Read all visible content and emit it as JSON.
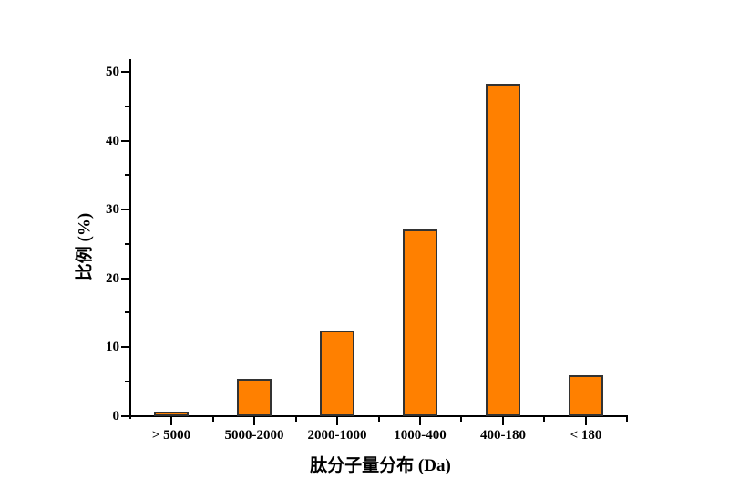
{
  "chart_data": {
    "type": "bar",
    "title": "",
    "categories": [
      "> 5000",
      "5000-2000",
      "2000-1000",
      "1000-400",
      "400-180",
      "< 180"
    ],
    "values": [
      0.7,
      5.4,
      12.4,
      27.2,
      48.3,
      5.9
    ],
    "xlabel": "肽分子量分布 (Da)",
    "ylabel": "比例 (%)",
    "ylim": [
      0,
      50
    ],
    "y_major_step": 10,
    "y_minor_step": 5,
    "y_tick_labels": [
      "0",
      "10",
      "20",
      "30",
      "40",
      "50"
    ],
    "grid": false,
    "legend": "none",
    "bar_color": "#FF8000",
    "bar_border_color": "#333333",
    "axis_color": "#000000",
    "background_color": "#FFFFFF"
  }
}
